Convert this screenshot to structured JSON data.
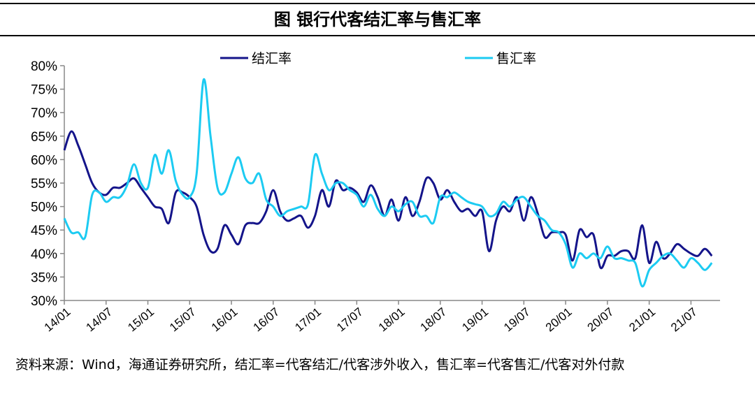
{
  "title": "图  银行代客结汇率与售汇率",
  "source": "资料来源：Wind，海通证券研究所，结汇率=代客结汇/代客涉外收入，售汇率=代客售汇/代客对外付款",
  "chart_data": {
    "type": "line",
    "title": "图  银行代客结汇率与售汇率",
    "x_start": "2014-01",
    "x_end": "2021-10",
    "frequency": "monthly",
    "xticks": [
      "14/01",
      "14/07",
      "15/01",
      "15/07",
      "16/01",
      "16/07",
      "17/01",
      "17/07",
      "18/01",
      "18/07",
      "19/01",
      "19/07",
      "20/01",
      "20/07",
      "21/01",
      "21/07"
    ],
    "ylim": [
      30,
      80
    ],
    "yticks": [
      "30%",
      "35%",
      "40%",
      "45%",
      "50%",
      "55%",
      "60%",
      "65%",
      "70%",
      "75%",
      "80%"
    ],
    "grid": false,
    "legend_placement": "top",
    "series": [
      {
        "name": "结汇率",
        "color": "#14148a",
        "values": [
          62,
          66,
          63,
          59,
          55,
          53,
          52.5,
          54,
          54,
          55,
          56,
          54,
          52,
          50,
          49.5,
          46.5,
          53,
          53,
          52,
          50,
          44,
          40.5,
          41,
          46,
          44,
          42,
          46,
          46.5,
          46.5,
          49,
          53.5,
          49,
          47,
          47.5,
          48,
          45.5,
          48,
          53.5,
          50,
          55.5,
          53.5,
          54,
          53,
          51,
          54.5,
          52,
          48,
          51.5,
          47,
          52,
          48,
          51,
          56,
          55,
          51.5,
          53.5,
          51,
          49,
          49.5,
          48,
          49,
          40.5,
          47,
          50,
          49,
          52,
          47,
          52,
          48.5,
          43.5,
          44.5,
          44.5,
          44,
          38.5,
          45,
          43.5,
          44,
          37,
          39.5,
          39.5,
          40.5,
          40.5,
          39,
          46,
          38,
          42.5,
          39,
          40,
          42,
          41,
          40,
          39.5,
          41,
          39.5
        ]
      },
      {
        "name": "售汇率",
        "color": "#1ccbf2",
        "values": [
          47.5,
          44.5,
          44.5,
          43.5,
          52.5,
          53,
          51,
          52,
          52,
          54.5,
          59,
          55,
          54,
          61,
          57,
          62,
          55.5,
          52.5,
          52,
          57,
          77,
          65,
          54,
          53,
          57,
          60.5,
          56,
          55,
          57,
          51.5,
          50,
          48,
          49,
          49.5,
          50,
          50.5,
          61,
          57,
          53.5,
          55,
          55,
          53.5,
          52.5,
          50,
          52.5,
          49.5,
          48,
          50,
          49,
          50.5,
          51,
          48,
          48,
          46.5,
          52,
          52,
          53,
          52,
          51,
          50.5,
          50,
          48,
          48.5,
          51,
          50,
          51.5,
          52,
          50,
          48,
          47,
          45,
          44.5,
          42,
          37,
          40,
          39,
          40,
          39,
          41.5,
          39,
          39,
          38.5,
          38,
          33,
          36.5,
          38,
          39.5,
          40,
          38.5,
          37,
          39,
          38,
          36.5,
          38
        ]
      }
    ]
  }
}
